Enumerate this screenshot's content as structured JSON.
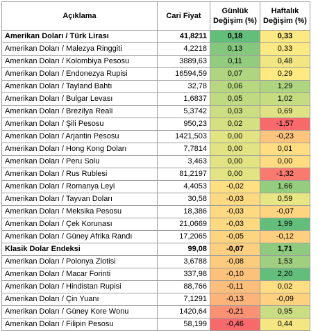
{
  "headers": {
    "description": "Açıklama",
    "price": "Cari Fiyat",
    "daily_line1": "Günlük",
    "daily_line2": "Değişim (%)",
    "weekly_line1": "Haftalık",
    "weekly_line2": "Değişim (%)"
  },
  "rows": [
    {
      "desc": "Amerikan Doları / Türk Lirası",
      "price": "41,8211",
      "daily": "0,18",
      "weekly": "0,33",
      "daily_color": "#63be7b",
      "weekly_color": "#fce983",
      "bold": true
    },
    {
      "desc": "Amerikan Doları / Malezya Ringgiti",
      "price": "4,2218",
      "daily": "0,13",
      "weekly": "0,33",
      "daily_color": "#84c77d",
      "weekly_color": "#fce983",
      "bold": false
    },
    {
      "desc": "Amerikan Doları / Kolombiya Pesosu",
      "price": "3889,63",
      "daily": "0,11",
      "weekly": "0,48",
      "daily_color": "#93cc7e",
      "weekly_color": "#f1e683",
      "bold": false
    },
    {
      "desc": "Amerikan Doları / Endonezya Rupisi",
      "price": "16594,59",
      "daily": "0,07",
      "weekly": "0,29",
      "daily_color": "#b0d580",
      "weekly_color": "#fee983",
      "bold": false
    },
    {
      "desc": "Amerikan Doları / Tayland Bahtı",
      "price": "32,78",
      "daily": "0,06",
      "weekly": "1,29",
      "daily_color": "#b7d780",
      "weekly_color": "#b0d580",
      "bold": false
    },
    {
      "desc": "Amerikan Doları / Bulgar Levası",
      "price": "1,6837",
      "daily": "0,05",
      "weekly": "1,02",
      "daily_color": "#bfda81",
      "weekly_color": "#c5dc81",
      "bold": false
    },
    {
      "desc": "Amerikan Doları / Brezilya Reali",
      "price": "5,3742",
      "daily": "0,03",
      "weekly": "0,69",
      "daily_color": "#cdde82",
      "weekly_color": "#e0e383",
      "bold": false
    },
    {
      "desc": "Amerikan Doları / Şili Pesosu",
      "price": "950,23",
      "daily": "0,02",
      "weekly": "-1,57",
      "daily_color": "#d4e082",
      "weekly_color": "#f8696b",
      "bold": false
    },
    {
      "desc": "Amerikan Doları / Arjantin Pesosu",
      "price": "1421,503",
      "daily": "0,00",
      "weekly": "-0,23",
      "daily_color": "#e2e383",
      "weekly_color": "#fdc47d",
      "bold": false
    },
    {
      "desc": "Amerikan Doları / Hong Kong Doları",
      "price": "7,7814",
      "daily": "0,00",
      "weekly": "0,01",
      "daily_color": "#e2e383",
      "weekly_color": "#ffdd82",
      "bold": false
    },
    {
      "desc": "Amerikan Doları / Peru Solu",
      "price": "3,463",
      "daily": "0,00",
      "weekly": "0,00",
      "daily_color": "#e2e383",
      "weekly_color": "#ffdc81",
      "bold": false
    },
    {
      "desc": "Amerikan Doları / Rus Rublesi",
      "price": "81,2197",
      "daily": "0,00",
      "weekly": "-1,32",
      "daily_color": "#e2e383",
      "weekly_color": "#f97a6e",
      "bold": false
    },
    {
      "desc": "Amerikan Doları / Romanya Leyi",
      "price": "4,4053",
      "daily": "-0,02",
      "weekly": "1,66",
      "daily_color": "#fee082",
      "weekly_color": "#95cd7e",
      "bold": false
    },
    {
      "desc": "Amerikan Doları /  Tayvan Doları",
      "price": "30,58",
      "daily": "-0,03",
      "weekly": "0,59",
      "daily_color": "#fdd981",
      "weekly_color": "#e8e583",
      "bold": false
    },
    {
      "desc": "Amerikan Doları / Meksika Pesosu",
      "price": "18,386",
      "daily": "-0,03",
      "weekly": "-0,07",
      "daily_color": "#fdd981",
      "weekly_color": "#fed47f",
      "bold": false
    },
    {
      "desc": "Amerikan Doları / Çek Korunası",
      "price": "21,0669",
      "daily": "-0,03",
      "weekly": "1,99",
      "daily_color": "#fdd981",
      "weekly_color": "#63be7b",
      "bold": false
    },
    {
      "desc": "Amerikan Doları / Güney Afrika Randı",
      "price": "17,2065",
      "daily": "-0,05",
      "weekly": "-0,12",
      "daily_color": "#fdd480",
      "weekly_color": "#fecf7f",
      "bold": false
    },
    {
      "desc": "Klasik Dolar Endeksi",
      "price": "99,08",
      "daily": "-0,07",
      "weekly": "1,71",
      "daily_color": "#fdcf7f",
      "weekly_color": "#8fcb7e",
      "bold": true
    },
    {
      "desc": "Amerikan Doları / Polonya Zlotisi",
      "price": "3,6788",
      "daily": "-0,08",
      "weekly": "1,53",
      "daily_color": "#fdcb7e",
      "weekly_color": "#a0d07f",
      "bold": false
    },
    {
      "desc": "Amerikan Doları / Macar Forinti",
      "price": "337,98",
      "daily": "-0,10",
      "weekly": "2,20",
      "daily_color": "#fcc27c",
      "weekly_color": "#63be7b",
      "bold": false
    },
    {
      "desc": "Amerikan Doları / Hindistan Rupisi",
      "price": "88,766",
      "daily": "-0,11",
      "weekly": "0,02",
      "daily_color": "#fcbe7c",
      "weekly_color": "#ffdd82",
      "bold": false
    },
    {
      "desc": "Amerikan Doları / Çin Yuanı",
      "price": "7,1291",
      "daily": "-0,13",
      "weekly": "-0,09",
      "daily_color": "#fcb47a",
      "weekly_color": "#fed17f",
      "bold": false
    },
    {
      "desc": "Amerikan Doları / Güney Kore Wonu",
      "price": "1420,64",
      "daily": "-0,21",
      "weekly": "0,95",
      "daily_color": "#fa9273",
      "weekly_color": "#cadd82",
      "bold": false
    },
    {
      "desc": "Amerikan Doları / Filipin Pesosu",
      "price": "58,199",
      "daily": "-0,46",
      "weekly": "0,44",
      "daily_color": "#f8696b",
      "weekly_color": "#f4e783",
      "bold": false
    }
  ]
}
